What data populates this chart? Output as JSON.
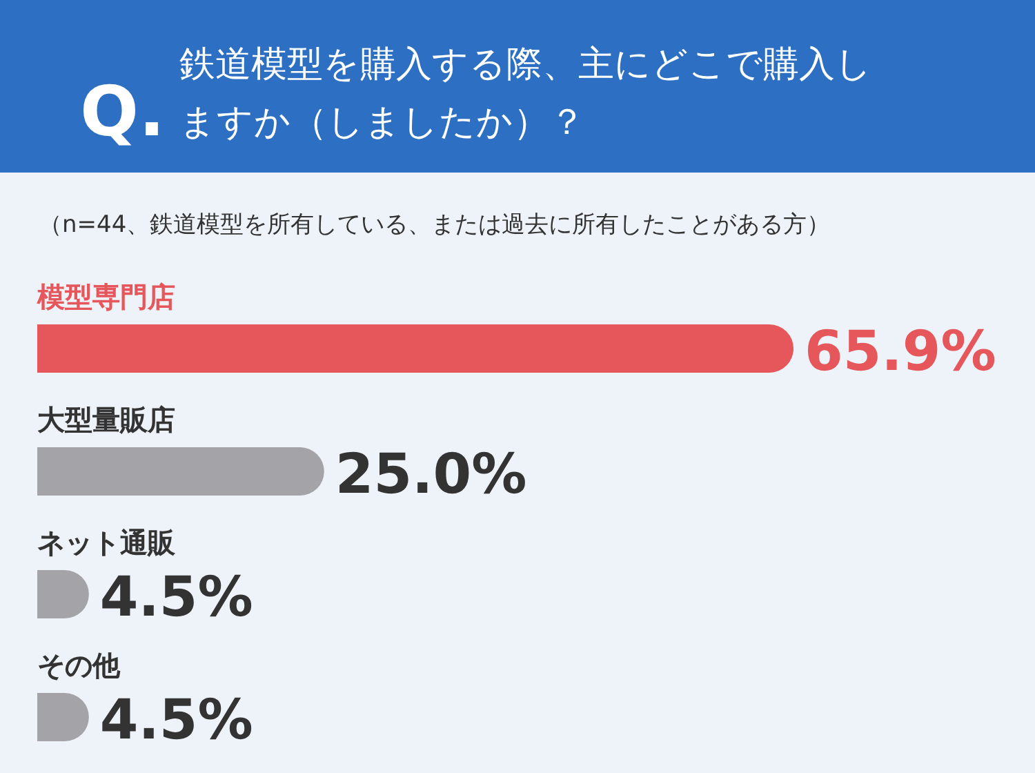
{
  "chart_data": {
    "type": "bar",
    "orientation": "horizontal",
    "title": "鉄道模型を購入する際、主にどこで購入しますか（しましたか）？",
    "subtitle": "（n=44、鉄道模型を所有している、または過去に所有したことがある方）",
    "annotations": [
      "Q."
    ],
    "categories": [
      "模型専門店",
      "大型量販店",
      "ネット通販",
      "その他"
    ],
    "values": [
      65.9,
      25.0,
      4.5,
      4.5
    ],
    "colors": [
      "#e5575b",
      "#a3a3a8",
      "#a3a3a8",
      "#a3a3a8"
    ],
    "value_labels": [
      "65.9%",
      "25.0%",
      "4.5%",
      "4.5%"
    ]
  }
}
